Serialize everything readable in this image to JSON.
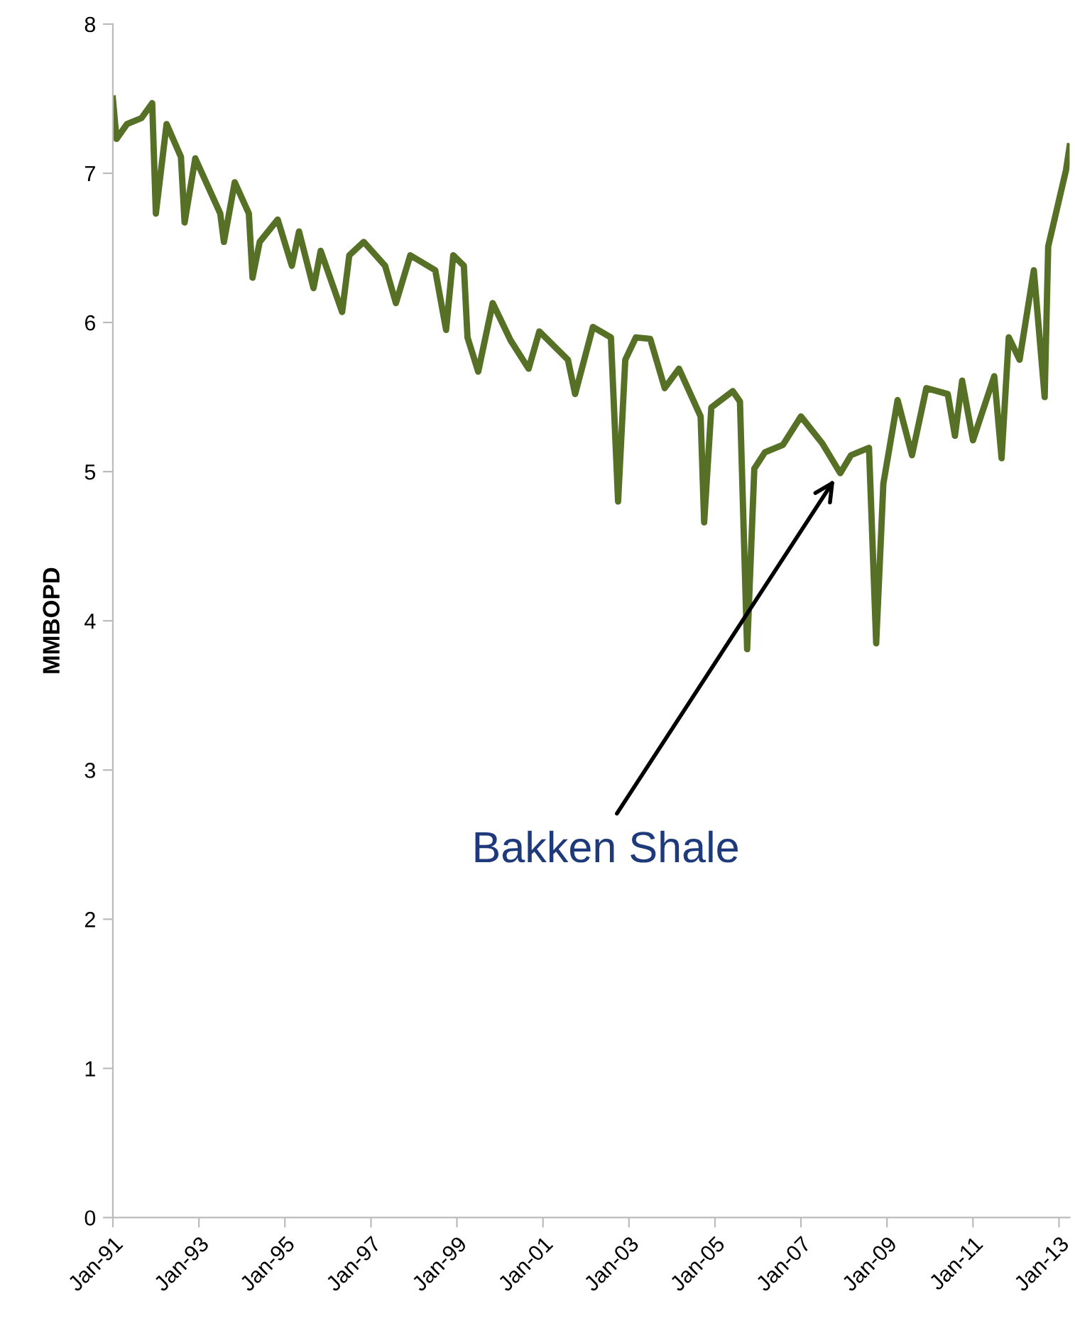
{
  "chart_data": {
    "type": "line",
    "ylabel": "MMBOPD",
    "x": [
      "1991-01",
      "1991-02",
      "1991-05",
      "1991-09",
      "1991-12",
      "1992-01",
      "1992-04",
      "1992-08",
      "1992-09",
      "1992-12",
      "1993-07",
      "1993-08",
      "1993-11",
      "1994-03",
      "1994-04",
      "1994-06",
      "1994-11",
      "1995-03",
      "1995-05",
      "1995-09",
      "1995-11",
      "1996-05",
      "1996-07",
      "1996-11",
      "1997-05",
      "1997-08",
      "1997-12",
      "1998-07",
      "1998-10",
      "1998-12",
      "1999-03",
      "1999-04",
      "1999-07",
      "1999-11",
      "2000-04",
      "2000-09",
      "2000-12",
      "2001-08",
      "2001-10",
      "2002-03",
      "2002-08",
      "2002-10",
      "2002-12",
      "2003-03",
      "2003-07",
      "2003-11",
      "2004-03",
      "2004-09",
      "2004-10",
      "2004-12",
      "2005-06",
      "2005-08",
      "2005-10",
      "2005-12",
      "2006-03",
      "2006-08",
      "2007-01",
      "2007-07",
      "2007-12",
      "2008-03",
      "2008-08",
      "2008-10",
      "2008-12",
      "2009-04",
      "2009-08",
      "2009-12",
      "2010-06",
      "2010-08",
      "2010-10",
      "2011-01",
      "2011-07",
      "2011-09",
      "2011-11",
      "2012-02",
      "2012-06",
      "2012-09",
      "2012-10",
      "2013-03",
      "2013-04"
    ],
    "series": [
      {
        "color": "#567026",
        "values": [
          7.5,
          7.23,
          7.33,
          7.37,
          7.47,
          6.73,
          7.33,
          7.11,
          6.67,
          7.1,
          6.73,
          6.54,
          6.94,
          6.73,
          6.3,
          6.54,
          6.69,
          6.38,
          6.61,
          6.23,
          6.48,
          6.07,
          6.45,
          6.54,
          6.38,
          6.13,
          6.45,
          6.35,
          5.95,
          6.45,
          6.38,
          5.9,
          5.67,
          6.13,
          5.88,
          5.69,
          5.94,
          5.75,
          5.52,
          5.97,
          5.9,
          4.8,
          5.75,
          5.9,
          5.89,
          5.56,
          5.69,
          5.37,
          4.66,
          5.43,
          5.54,
          5.47,
          3.81,
          5.02,
          5.13,
          5.18,
          5.37,
          5.19,
          4.99,
          5.11,
          5.16,
          3.85,
          4.92,
          5.48,
          5.11,
          5.56,
          5.52,
          5.24,
          5.61,
          5.21,
          5.64,
          5.09,
          5.9,
          5.75,
          6.35,
          5.5,
          6.51,
          7.02,
          7.18
        ]
      }
    ],
    "xlim": [
      "1991-01",
      "2013-04"
    ],
    "xticks": [
      {
        "value": "1991-01",
        "label": "Jan-91"
      },
      {
        "value": "1993-01",
        "label": "Jan-93"
      },
      {
        "value": "1995-01",
        "label": "Jan-95"
      },
      {
        "value": "1997-01",
        "label": "Jan-97"
      },
      {
        "value": "1999-01",
        "label": "Jan-99"
      },
      {
        "value": "2001-01",
        "label": "Jan-01"
      },
      {
        "value": "2003-01",
        "label": "Jan-03"
      },
      {
        "value": "2005-01",
        "label": "Jan-05"
      },
      {
        "value": "2007-01",
        "label": "Jan-07"
      },
      {
        "value": "2009-01",
        "label": "Jan-09"
      },
      {
        "value": "2011-01",
        "label": "Jan-11"
      },
      {
        "value": "2013-01",
        "label": "Jan-13"
      }
    ],
    "ylim": [
      0,
      8
    ],
    "yticks": [
      0,
      1,
      2,
      3,
      4,
      5,
      6,
      7,
      8
    ],
    "annotations": [
      {
        "text": "Bakken Shale",
        "x": "2007-11",
        "y": 4.97
      }
    ],
    "grid": false,
    "legend": false,
    "marker": "none",
    "line_style": "solid"
  }
}
